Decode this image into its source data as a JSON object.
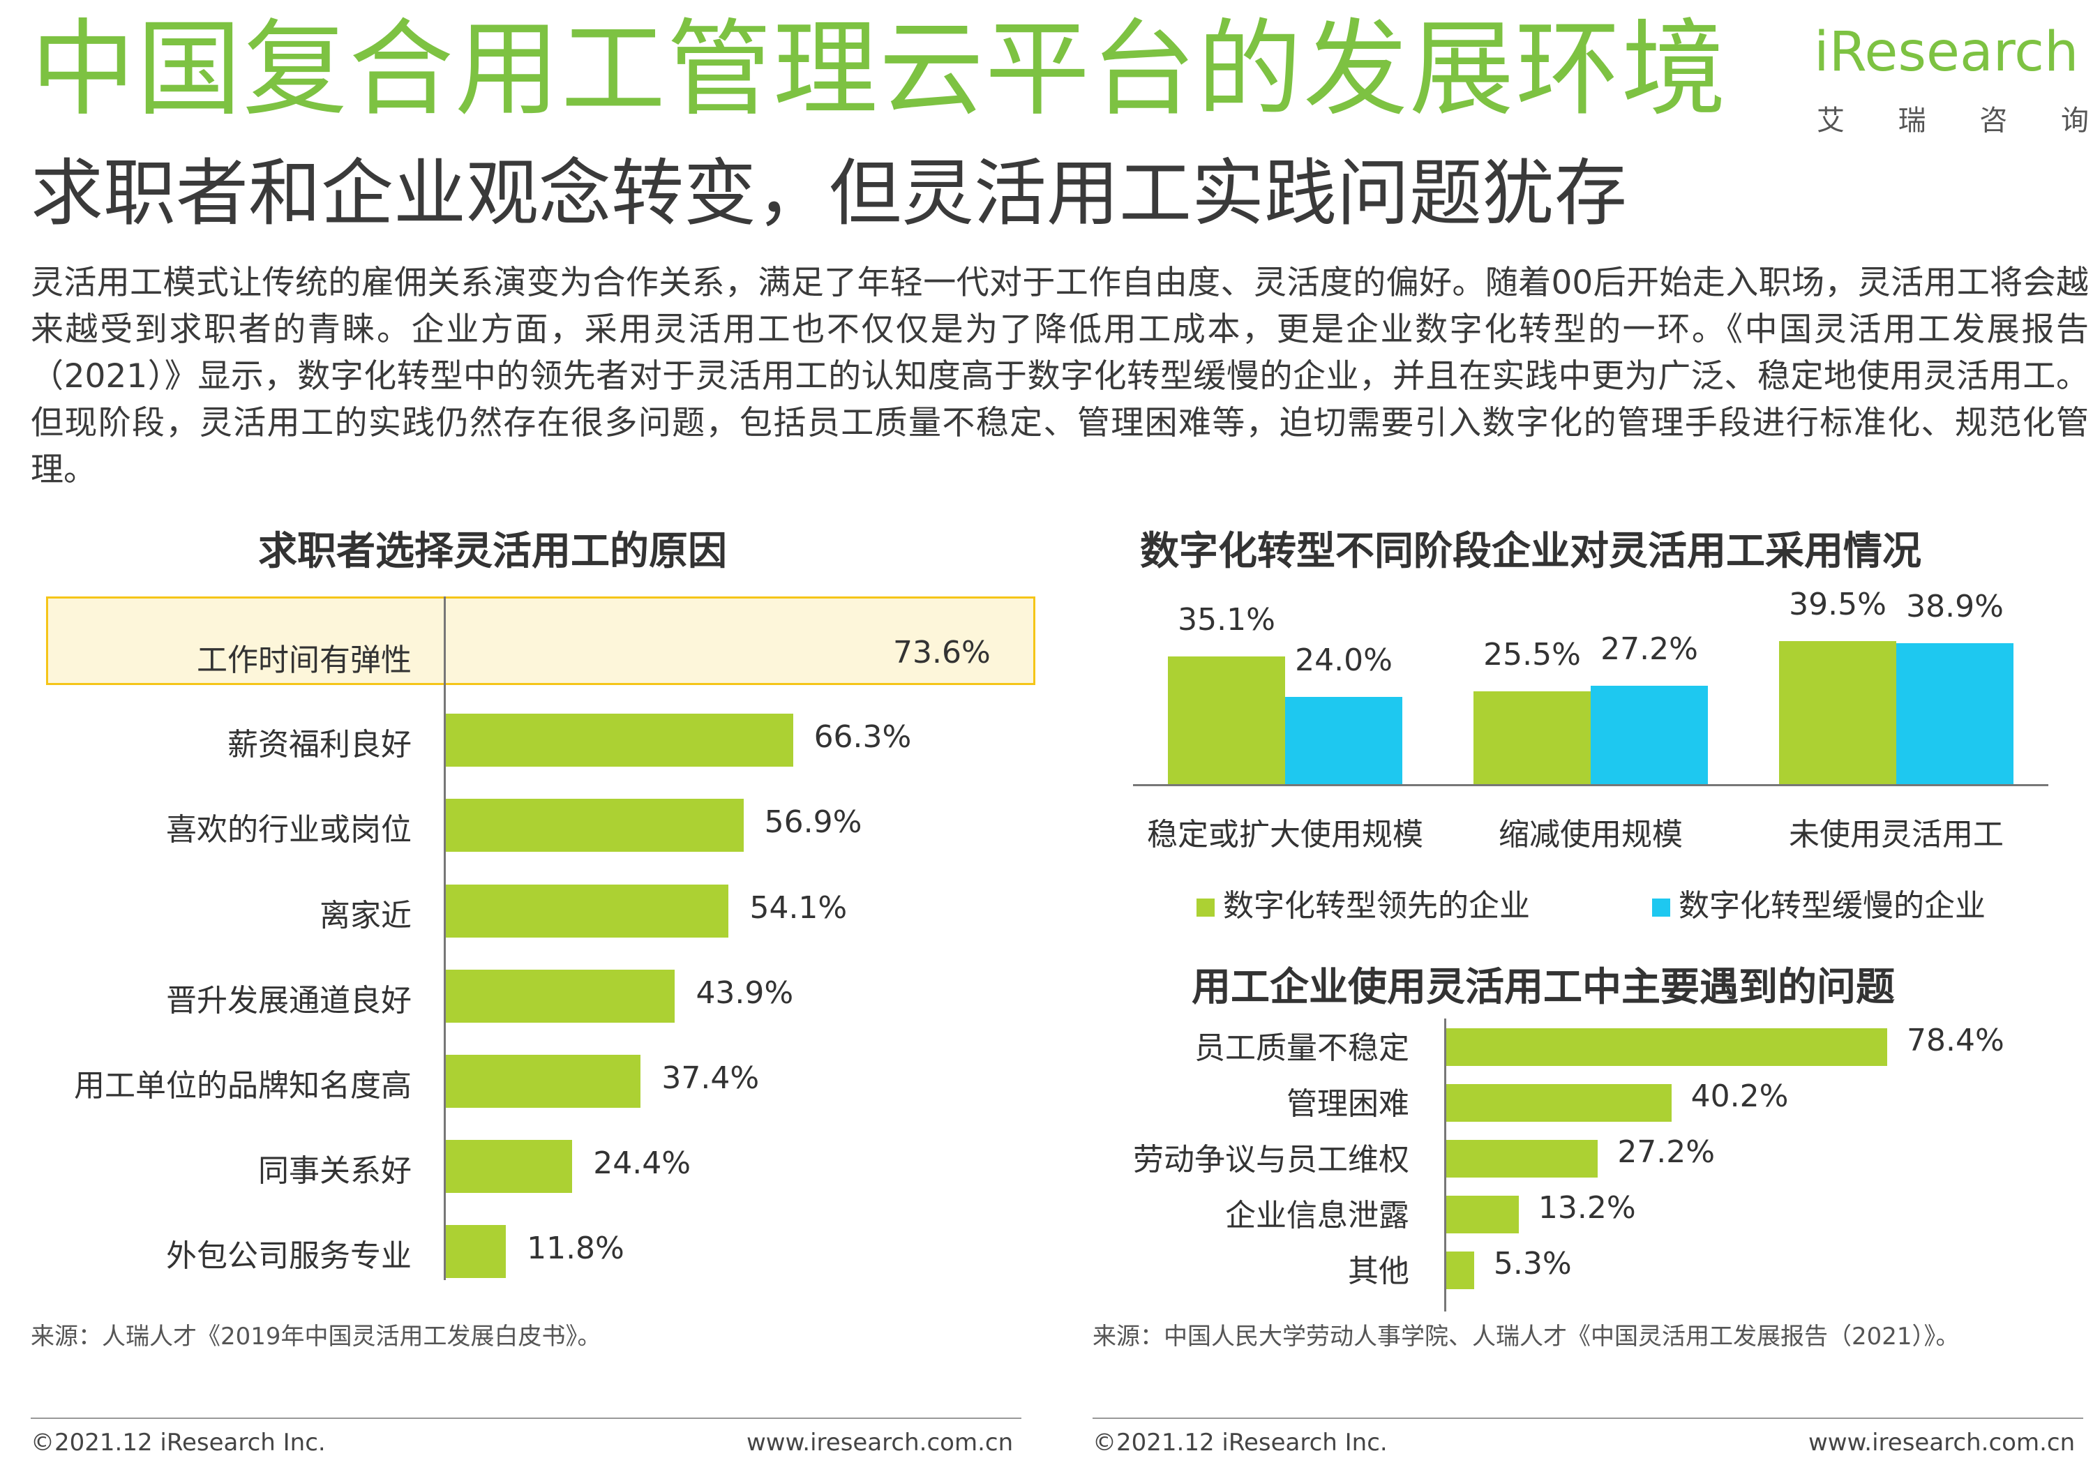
{
  "header": {
    "main_title": "中国复合用工管理云平台的发展环境",
    "subtitle": "求职者和企业观念转变，但灵活用工实践问题犹存",
    "intro": "灵活用工模式让传统的雇佣关系演变为合作关系，满足了年轻一代对于工作自由度、灵活度的偏好。随着00后开始走入职场，灵活用工将会越来越受到求职者的青睐。企业方面，采用灵活用工也不仅仅是为了降低用工成本，更是企业数字化转型的一环。《中国灵活用工发展报告（2021）》显示，数字化转型中的领先者对于灵活用工的认知度高于数字化转型缓慢的企业，并且在实践中更为广泛、稳定地使用灵活用工。但现阶段，灵活用工的实践仍然存在很多问题，包括员工质量不稳定、管理困难等，迫切需要引入数字化的管理手段进行标准化、规范化管理。"
  },
  "logo": {
    "word": "iResearch",
    "cn_chars": [
      "艾",
      "瑞",
      "咨",
      "询"
    ]
  },
  "colors": {
    "title_green": "#7dc242",
    "bar_green": "#acd133",
    "bar_blue": "#1ec8f0",
    "highlight_border": "#f5c518"
  },
  "chart_data": [
    {
      "type": "bar",
      "orientation": "horizontal",
      "title": "求职者选择灵活用工的原因",
      "categories": [
        "工作时间有弹性",
        "薪资福利良好",
        "喜欢的行业或岗位",
        "离家近",
        "晋升发展通道良好",
        "用工单位的品牌知名度高",
        "同事关系好",
        "外包公司服务专业"
      ],
      "values": [
        73.6,
        66.3,
        56.9,
        54.1,
        43.9,
        37.4,
        24.4,
        11.8
      ],
      "value_labels": [
        "73.6%",
        "66.3%",
        "56.9%",
        "54.1%",
        "43.9%",
        "37.4%",
        "24.4%",
        "11.8%"
      ],
      "highlighted_category": "工作时间有弹性",
      "source": "来源：人瑞人才《2019年中国灵活用工发展白皮书》。"
    },
    {
      "type": "bar",
      "orientation": "vertical",
      "title": "数字化转型不同阶段企业对灵活用工采用情况",
      "categories": [
        "稳定或扩大使用规模",
        "缩减使用规模",
        "未使用灵活用工"
      ],
      "series": [
        {
          "name": "数字化转型领先的企业",
          "values": [
            35.1,
            25.5,
            39.5
          ],
          "labels": [
            "35.1%",
            "25.5%",
            "39.5%"
          ]
        },
        {
          "name": "数字化转型缓慢的企业",
          "values": [
            24.0,
            27.2,
            38.9
          ],
          "labels": [
            "24.0%",
            "27.2%",
            "38.9%"
          ]
        }
      ],
      "legend_position": "bottom"
    },
    {
      "type": "bar",
      "orientation": "horizontal",
      "title": "用工企业使用灵活用工中主要遇到的问题",
      "categories": [
        "员工质量不稳定",
        "管理困难",
        "劳动争议与员工维权",
        "企业信息泄露",
        "其他"
      ],
      "values": [
        78.4,
        40.2,
        27.2,
        13.2,
        5.3
      ],
      "value_labels": [
        "78.4%",
        "40.2%",
        "27.2%",
        "13.2%",
        "5.3%"
      ],
      "source": "来源：中国人民大学劳动人事学院、人瑞人才《中国灵活用工发展报告（2021）》。"
    }
  ],
  "footer": {
    "left_copyright": "©2021.12 iResearch Inc.",
    "left_url": "www.iresearch.com.cn",
    "right_copyright": "©2021.12 iResearch Inc.",
    "right_url": "www.iresearch.com.cn"
  }
}
